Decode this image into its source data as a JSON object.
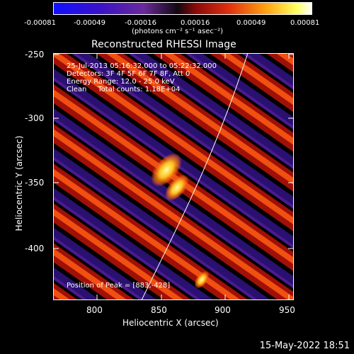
{
  "colorbar": {
    "ticks": [
      "-0.00081",
      "-0.00049",
      "-0.00016",
      "0.00016",
      "0.00049",
      "0.00081"
    ],
    "unit": "(photons cm⁻² s⁻¹ asec⁻²)"
  },
  "title": "Reconstructed RHESSI Image",
  "meta": {
    "time": "25-Jul-2013 05:16:32.000 to 05:22:32.000",
    "detectors": "Detectors: 3F 4F 5F 6F 7F 8F, Att 0",
    "energy": "Energy Range: 12.0 - 25.0 keV",
    "clean": "Clean     Total counts: 1.18E+04"
  },
  "peak": "Position of Peak = [883,-428]",
  "xlabel": "Heliocentric X (arcsec)",
  "ylabel": "Heliocentric Y (arcsec)",
  "xticks": [
    "800",
    "850",
    "900",
    "950"
  ],
  "yticks": [
    "-250",
    "-300",
    "-350",
    "-400"
  ],
  "timestamp": "15-May-2022 18:51",
  "colors": {
    "background": "#000000",
    "limb_line": "#ffffff",
    "text": "#ffffff"
  }
}
